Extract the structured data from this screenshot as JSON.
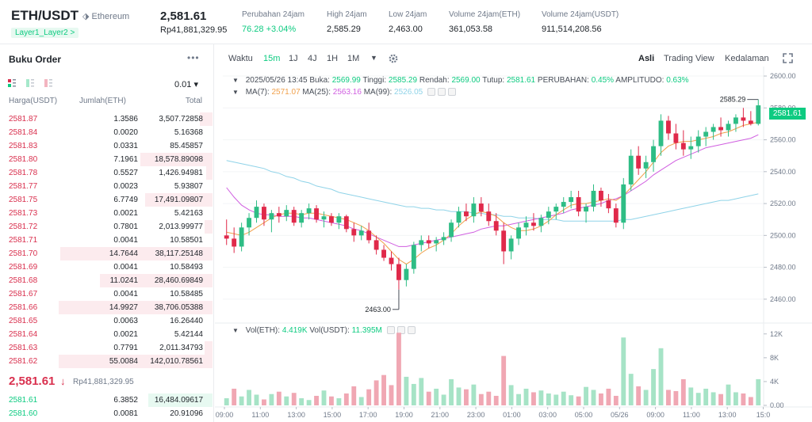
{
  "header": {
    "pair": "ETH/USDT",
    "network": "Ethereum",
    "tag": "Layer1_Layer2 >",
    "price": "2,581.61",
    "price_idr": "Rp41,881,329.95",
    "stats": [
      {
        "label": "Perubahan 24jam",
        "value": "76.28 +3.04%"
      },
      {
        "label": "High 24jam",
        "value": "2,585.29"
      },
      {
        "label": "Low 24jam",
        "value": "2,463.00"
      },
      {
        "label": "Volume 24jam(ETH)",
        "value": "361,053.58"
      },
      {
        "label": "Volume 24jam(USDT)",
        "value": "911,514,208.56"
      }
    ]
  },
  "orderbook": {
    "title": "Buku Order",
    "more": "•••",
    "precision": "0.01 ▾",
    "headers": [
      "Harga(USDT)",
      "Jumlah(ETH)",
      "Total"
    ],
    "asks": [
      {
        "price": "2581.87",
        "amount": "1.3586",
        "total": "3,507.72858",
        "depth": 0.08
      },
      {
        "price": "2581.84",
        "amount": "0.0020",
        "total": "5.16368",
        "depth": 0.0
      },
      {
        "price": "2581.83",
        "amount": "0.0331",
        "total": "85.45857",
        "depth": 0.0
      },
      {
        "price": "2581.80",
        "amount": "7.1961",
        "total": "18,578.89098",
        "depth": 0.47
      },
      {
        "price": "2581.78",
        "amount": "0.5527",
        "total": "1,426.94981",
        "depth": 0.04
      },
      {
        "price": "2581.77",
        "amount": "0.0023",
        "total": "5.93807",
        "depth": 0.0
      },
      {
        "price": "2581.75",
        "amount": "6.7749",
        "total": "17,491.09807",
        "depth": 0.44
      },
      {
        "price": "2581.73",
        "amount": "0.0021",
        "total": "5.42163",
        "depth": 0.0
      },
      {
        "price": "2581.72",
        "amount": "0.7801",
        "total": "2,013.99977",
        "depth": 0.05
      },
      {
        "price": "2581.71",
        "amount": "0.0041",
        "total": "10.58501",
        "depth": 0.0
      },
      {
        "price": "2581.70",
        "amount": "14.7644",
        "total": "38,117.25148",
        "depth": 0.99
      },
      {
        "price": "2581.69",
        "amount": "0.0041",
        "total": "10.58493",
        "depth": 0.0
      },
      {
        "price": "2581.68",
        "amount": "11.0241",
        "total": "28,460.69849",
        "depth": 0.73
      },
      {
        "price": "2581.67",
        "amount": "0.0041",
        "total": "10.58485",
        "depth": 0.0
      },
      {
        "price": "2581.66",
        "amount": "14.9927",
        "total": "38,706.05388",
        "depth": 1.0
      },
      {
        "price": "2581.65",
        "amount": "0.0063",
        "total": "16.26440",
        "depth": 0.0
      },
      {
        "price": "2581.64",
        "amount": "0.0021",
        "total": "5.42144",
        "depth": 0.0
      },
      {
        "price": "2581.63",
        "amount": "0.7791",
        "total": "2,011.34793",
        "depth": 0.05
      },
      {
        "price": "2581.62",
        "amount": "55.0084",
        "total": "142,010.78561",
        "depth": 1.0
      }
    ],
    "mid_price": "2,581.61",
    "mid_arrow": "↓",
    "mid_idr": "Rp41,881,329.95",
    "bids": [
      {
        "price": "2581.61",
        "amount": "6.3852",
        "total": "16,484.09617",
        "depth": 0.42
      },
      {
        "price": "2581.60",
        "amount": "0.0081",
        "total": "20.91096",
        "depth": 0.0
      }
    ]
  },
  "toolbar": {
    "time_label": "Waktu",
    "intervals": [
      "15m",
      "1J",
      "4J",
      "1H",
      "1M"
    ],
    "active_interval": "15m",
    "views": [
      "Asli",
      "Trading View",
      "Kedalaman"
    ],
    "active_view": "Asli"
  },
  "ohlc_line": {
    "date": "2025/05/26 13:45",
    "open_label": "Buka:",
    "open": "2569.99",
    "high_label": "Tinggi:",
    "high": "2585.29",
    "low_label": "Rendah:",
    "low": "2569.00",
    "close_label": "Tutup:",
    "close": "2581.61",
    "change_label": "PERUBAHAN:",
    "change": "0.45%",
    "amp_label": "AMPLITUDO:",
    "amp": "0.63%"
  },
  "ma_line": {
    "ma7_label": "MA(7):",
    "ma7": "2571.07",
    "ma25_label": "MA(25):",
    "ma25": "2563.16",
    "ma99_label": "MA(99):",
    "ma99": "2526.05"
  },
  "vol_line": {
    "eth_label": "Vol(ETH):",
    "eth": "4.419K",
    "usdt_label": "Vol(USDT):",
    "usdt": "11.395M"
  },
  "chart_data": {
    "type": "candlestick",
    "price_axis": {
      "ticks": [
        "2600.00",
        "2580.00",
        "2560.00",
        "2540.00",
        "2520.00",
        "2500.00",
        "2480.00",
        "2460.00"
      ],
      "ylim": [
        2451,
        2603
      ]
    },
    "volume_axis": {
      "ticks": [
        "12K",
        "8K",
        "4K",
        "0.00"
      ],
      "ylim": [
        0,
        12500
      ]
    },
    "time_ticks": [
      "09:00",
      "11:00",
      "13:00",
      "15:00",
      "17:00",
      "19:00",
      "21:00",
      "23:00",
      "01:00",
      "03:00",
      "05:00",
      "05/26",
      "09:00",
      "11:00",
      "13:00",
      "15:0"
    ],
    "high_marker": "2585.29",
    "low_marker": "2463.00",
    "last_price": "2581.61",
    "candles": [
      [
        2500,
        2510,
        2494,
        2498
      ],
      [
        2498,
        2505,
        2489,
        2493
      ],
      [
        2493,
        2508,
        2490,
        2505
      ],
      [
        2505,
        2514,
        2500,
        2511
      ],
      [
        2511,
        2522,
        2508,
        2518
      ],
      [
        2518,
        2520,
        2506,
        2510
      ],
      [
        2510,
        2516,
        2502,
        2514
      ],
      [
        2514,
        2518,
        2508,
        2512
      ],
      [
        2512,
        2519,
        2509,
        2516
      ],
      [
        2516,
        2518,
        2506,
        2508
      ],
      [
        2508,
        2516,
        2505,
        2514
      ],
      [
        2514,
        2520,
        2510,
        2517
      ],
      [
        2517,
        2519,
        2508,
        2510
      ],
      [
        2510,
        2515,
        2505,
        2512
      ],
      [
        2512,
        2514,
        2506,
        2508
      ],
      [
        2508,
        2514,
        2504,
        2512
      ],
      [
        2512,
        2513,
        2502,
        2504
      ],
      [
        2504,
        2508,
        2496,
        2500
      ],
      [
        2500,
        2506,
        2497,
        2503
      ],
      [
        2503,
        2508,
        2495,
        2497
      ],
      [
        2497,
        2500,
        2488,
        2491
      ],
      [
        2491,
        2494,
        2484,
        2486
      ],
      [
        2486,
        2490,
        2478,
        2482
      ],
      [
        2482,
        2486,
        2466,
        2472
      ],
      [
        2472,
        2482,
        2468,
        2479
      ],
      [
        2479,
        2496,
        2476,
        2494
      ],
      [
        2494,
        2500,
        2490,
        2497
      ],
      [
        2497,
        2500,
        2492,
        2495
      ],
      [
        2495,
        2499,
        2490,
        2497
      ],
      [
        2497,
        2502,
        2494,
        2499
      ],
      [
        2499,
        2510,
        2496,
        2508
      ],
      [
        2508,
        2518,
        2505,
        2515
      ],
      [
        2515,
        2520,
        2509,
        2512
      ],
      [
        2512,
        2524,
        2508,
        2520
      ],
      [
        2520,
        2524,
        2512,
        2515
      ],
      [
        2515,
        2520,
        2506,
        2509
      ],
      [
        2509,
        2514,
        2500,
        2503
      ],
      [
        2503,
        2508,
        2482,
        2490
      ],
      [
        2490,
        2500,
        2485,
        2498
      ],
      [
        2498,
        2508,
        2494,
        2505
      ],
      [
        2505,
        2512,
        2500,
        2508
      ],
      [
        2508,
        2514,
        2503,
        2506
      ],
      [
        2506,
        2513,
        2502,
        2511
      ],
      [
        2511,
        2518,
        2507,
        2515
      ],
      [
        2515,
        2520,
        2510,
        2518
      ],
      [
        2518,
        2524,
        2514,
        2521
      ],
      [
        2521,
        2528,
        2517,
        2524
      ],
      [
        2524,
        2528,
        2512,
        2515
      ],
      [
        2515,
        2520,
        2508,
        2518
      ],
      [
        2518,
        2532,
        2515,
        2528
      ],
      [
        2528,
        2530,
        2518,
        2522
      ],
      [
        2522,
        2526,
        2514,
        2517
      ],
      [
        2517,
        2520,
        2505,
        2508
      ],
      [
        2508,
        2536,
        2504,
        2532
      ],
      [
        2532,
        2554,
        2528,
        2550
      ],
      [
        2550,
        2556,
        2538,
        2542
      ],
      [
        2542,
        2550,
        2536,
        2546
      ],
      [
        2546,
        2560,
        2540,
        2556
      ],
      [
        2556,
        2576,
        2550,
        2572
      ],
      [
        2572,
        2575,
        2560,
        2564
      ],
      [
        2564,
        2570,
        2554,
        2558
      ],
      [
        2558,
        2566,
        2550,
        2554
      ],
      [
        2554,
        2562,
        2548,
        2556
      ],
      [
        2556,
        2566,
        2552,
        2562
      ],
      [
        2562,
        2568,
        2556,
        2565
      ],
      [
        2565,
        2570,
        2560,
        2568
      ],
      [
        2568,
        2574,
        2562,
        2566
      ],
      [
        2566,
        2572,
        2562,
        2570
      ],
      [
        2570,
        2576,
        2565,
        2574
      ],
      [
        2574,
        2580,
        2568,
        2572
      ],
      [
        2572,
        2578,
        2569,
        2570
      ],
      [
        2570,
        2585.29,
        2569,
        2581.61
      ]
    ],
    "ma7": [
      2502,
      2501,
      2500,
      2502,
      2505,
      2508,
      2511,
      2513,
      2514,
      2514,
      2513,
      2514,
      2514,
      2513,
      2512,
      2511,
      2510,
      2508,
      2506,
      2503,
      2499,
      2495,
      2490,
      2485,
      2482,
      2485,
      2489,
      2492,
      2494,
      2497,
      2501,
      2506,
      2510,
      2513,
      2515,
      2514,
      2512,
      2508,
      2505,
      2503,
      2503,
      2504,
      2506,
      2509,
      2513,
      2516,
      2519,
      2520,
      2520,
      2521,
      2522,
      2523,
      2522,
      2525,
      2530,
      2535,
      2540,
      2546,
      2552,
      2556,
      2558,
      2559,
      2559,
      2560,
      2561,
      2562,
      2564,
      2565,
      2567,
      2569,
      2570,
      2571.07
    ],
    "ma25": [
      2530,
      2524,
      2519,
      2516,
      2514,
      2513,
      2513,
      2512,
      2512,
      2512,
      2511,
      2511,
      2510,
      2509,
      2508,
      2507,
      2506,
      2504,
      2503,
      2501,
      2499,
      2497,
      2495,
      2493,
      2493,
      2494,
      2495,
      2496,
      2497,
      2498,
      2499,
      2500,
      2501,
      2502,
      2504,
      2505,
      2506,
      2506,
      2507,
      2508,
      2509,
      2510,
      2511,
      2512,
      2513,
      2514,
      2516,
      2517,
      2518,
      2519,
      2520,
      2522,
      2523,
      2525,
      2528,
      2531,
      2534,
      2538,
      2541,
      2544,
      2547,
      2549,
      2551,
      2553,
      2555,
      2556,
      2557,
      2558,
      2559,
      2560,
      2561,
      2563.16
    ],
    "ma99": [
      2547,
      2546,
      2545,
      2544,
      2543,
      2542,
      2540,
      2539,
      2537,
      2536,
      2534,
      2533,
      2531,
      2530,
      2529,
      2527,
      2526,
      2525,
      2524,
      2523,
      2522,
      2521,
      2520,
      2519,
      2518,
      2518,
      2517,
      2517,
      2516,
      2516,
      2515,
      2515,
      2515,
      2514,
      2514,
      2513,
      2513,
      2512,
      2512,
      2511,
      2511,
      2511,
      2510,
      2510,
      2510,
      2509,
      2509,
      2509,
      2509,
      2509,
      2509,
      2509,
      2509,
      2510,
      2510,
      2511,
      2512,
      2513,
      2514,
      2515,
      2516,
      2517,
      2518,
      2519,
      2520,
      2521,
      2522,
      2522,
      2523,
      2524,
      2525,
      2526.05
    ],
    "volume": [
      1200,
      2800,
      1500,
      2600,
      1800,
      1000,
      1900,
      2300,
      1500,
      2100,
      1200,
      900,
      1600,
      2500,
      1500,
      1200,
      2000,
      3200,
      1400,
      2700,
      4200,
      5100,
      3400,
      12200,
      4800,
      3600,
      4600,
      2300,
      2800,
      1800,
      4400,
      3000,
      2700,
      3500,
      1900,
      2300,
      1600,
      8300,
      3400,
      1900,
      2800,
      2200,
      2500,
      2000,
      1800,
      2300,
      1700,
      1500,
      3100,
      2600,
      2000,
      2800,
      1600,
      11400,
      5300,
      3200,
      2600,
      6100,
      9600,
      2600,
      2400,
      4400,
      3000,
      2100,
      2800,
      2200,
      1900,
      3500,
      2200,
      2000,
      1400,
      4400
    ],
    "volume_up": [
      true,
      false,
      true,
      true,
      true,
      false,
      true,
      false,
      true,
      false,
      true,
      true,
      false,
      true,
      false,
      true,
      false,
      false,
      true,
      false,
      false,
      false,
      false,
      false,
      true,
      true,
      true,
      false,
      true,
      true,
      true,
      true,
      false,
      true,
      false,
      false,
      false,
      false,
      true,
      true,
      true,
      false,
      true,
      true,
      true,
      true,
      true,
      false,
      true,
      true,
      false,
      false,
      false,
      true,
      true,
      false,
      true,
      true,
      true,
      false,
      false,
      false,
      true,
      true,
      true,
      true,
      false,
      true,
      true,
      false,
      false,
      true
    ]
  }
}
